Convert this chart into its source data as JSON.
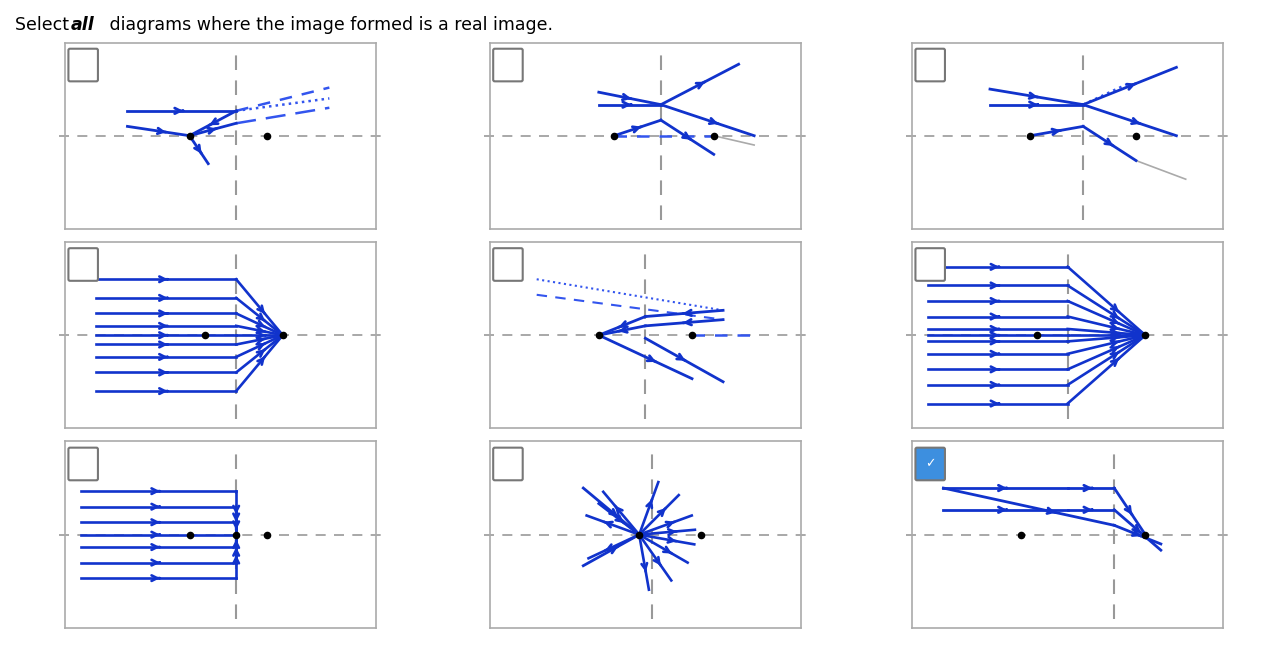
{
  "blue": "#1133cc",
  "dblue": "#3355ee",
  "gray": "#aaaaaa",
  "darkgray": "#777777",
  "black": "#111111",
  "check_blue": "#3d8fdf",
  "checked": [
    false,
    false,
    false,
    false,
    false,
    false,
    false,
    false,
    true
  ],
  "figsize": [
    12.68,
    6.54
  ],
  "dpi": 100,
  "title_pre": "Select ",
  "title_italic": "all",
  "title_post": " diagrams where the image formed is a real image."
}
